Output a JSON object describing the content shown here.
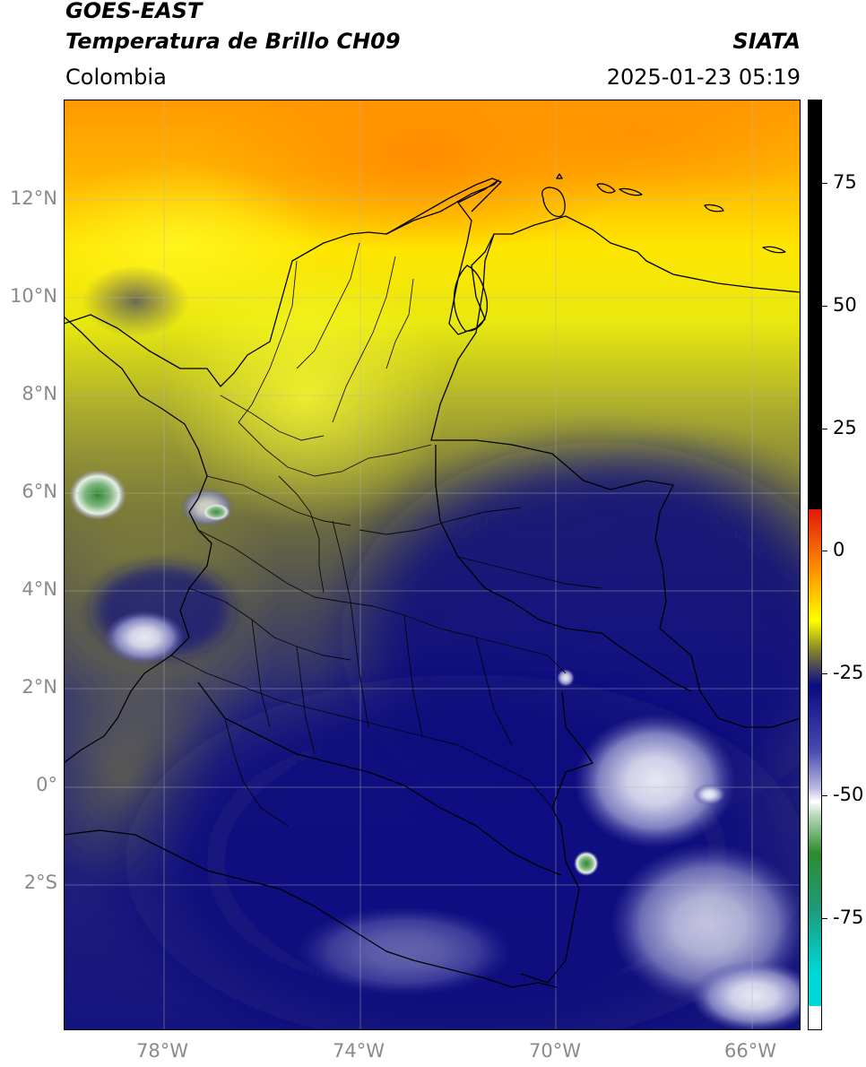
{
  "header": {
    "satellite": "GOES-EAST",
    "product": "Temperatura de Brillo CH09",
    "organization": "SIATA",
    "region": "Colombia",
    "datetime": "2025-01-23 05:19"
  },
  "map": {
    "lon_ticks": [
      "78°W",
      "74°W",
      "70°W",
      "66°W"
    ],
    "lat_ticks": [
      "12°N",
      "10°N",
      "8°N",
      "6°N",
      "4°N",
      "2°N",
      "0°",
      "2°S"
    ],
    "grid": true
  },
  "colorbar": {
    "ticks": [
      "75",
      "50",
      "25",
      "0",
      "-25",
      "-50",
      "-75"
    ],
    "colors": {
      "warm_top": "#000000",
      "red": "#e3170a",
      "orange": "#ff9a00",
      "yellow": "#ffff00",
      "olive": "#8c8c26",
      "gray": "#46465a",
      "navy": "#0a0a82",
      "white": "#ffffff",
      "green": "#2e8b2e",
      "cyan": "#00d8d8"
    }
  }
}
